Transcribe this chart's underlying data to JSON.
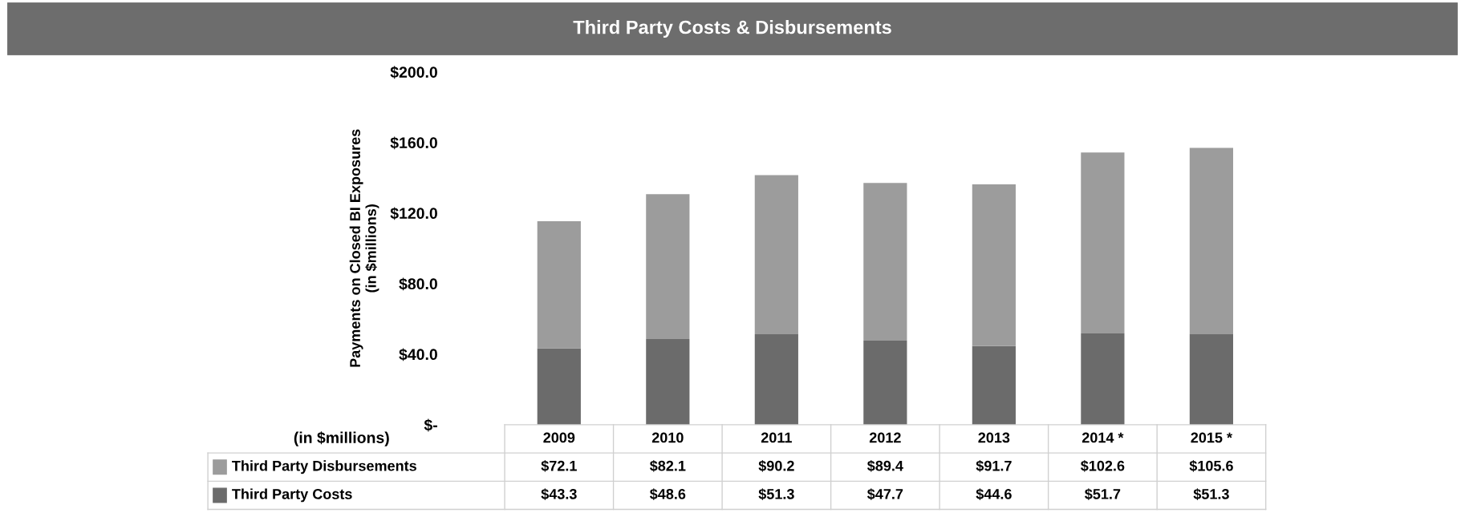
{
  "chart_data": {
    "type": "bar",
    "title": "Third Party Costs & Disbursements",
    "ylabel": "Payments on Closed BI Exposures\n(in $millions)",
    "annotations": [
      "(in $millions)"
    ],
    "categories": [
      "2009",
      "2010",
      "2011",
      "2012",
      "2013",
      "2014 *",
      "2015 *"
    ],
    "stacked": true,
    "series": [
      {
        "name": "Third Party Costs",
        "color": "#6b6b6b",
        "values": [
          43.3,
          48.6,
          51.3,
          47.7,
          44.6,
          51.7,
          51.3
        ],
        "value_labels": [
          "$43.3",
          "$48.6",
          "$51.3",
          "$47.7",
          "$44.6",
          "$51.7",
          "$51.3"
        ]
      },
      {
        "name": "Third Party Disbursements",
        "color": "#9c9c9c",
        "values": [
          72.1,
          82.1,
          90.2,
          89.4,
          91.7,
          102.6,
          105.6
        ],
        "value_labels": [
          "$72.1",
          "$82.1",
          "$90.2",
          "$89.4",
          "$91.7",
          "$102.6",
          "$105.6"
        ]
      }
    ],
    "ylim": [
      0,
      200
    ],
    "yticks": [
      {
        "value": 0,
        "label": "$-"
      },
      {
        "value": 40,
        "label": "$40.0"
      },
      {
        "value": 80,
        "label": "$80.0"
      },
      {
        "value": 120,
        "label": "$120.0"
      },
      {
        "value": 160,
        "label": "$160.0"
      },
      {
        "value": 200,
        "label": "$200.0"
      }
    ],
    "grid": false,
    "legend": "bottom left"
  }
}
